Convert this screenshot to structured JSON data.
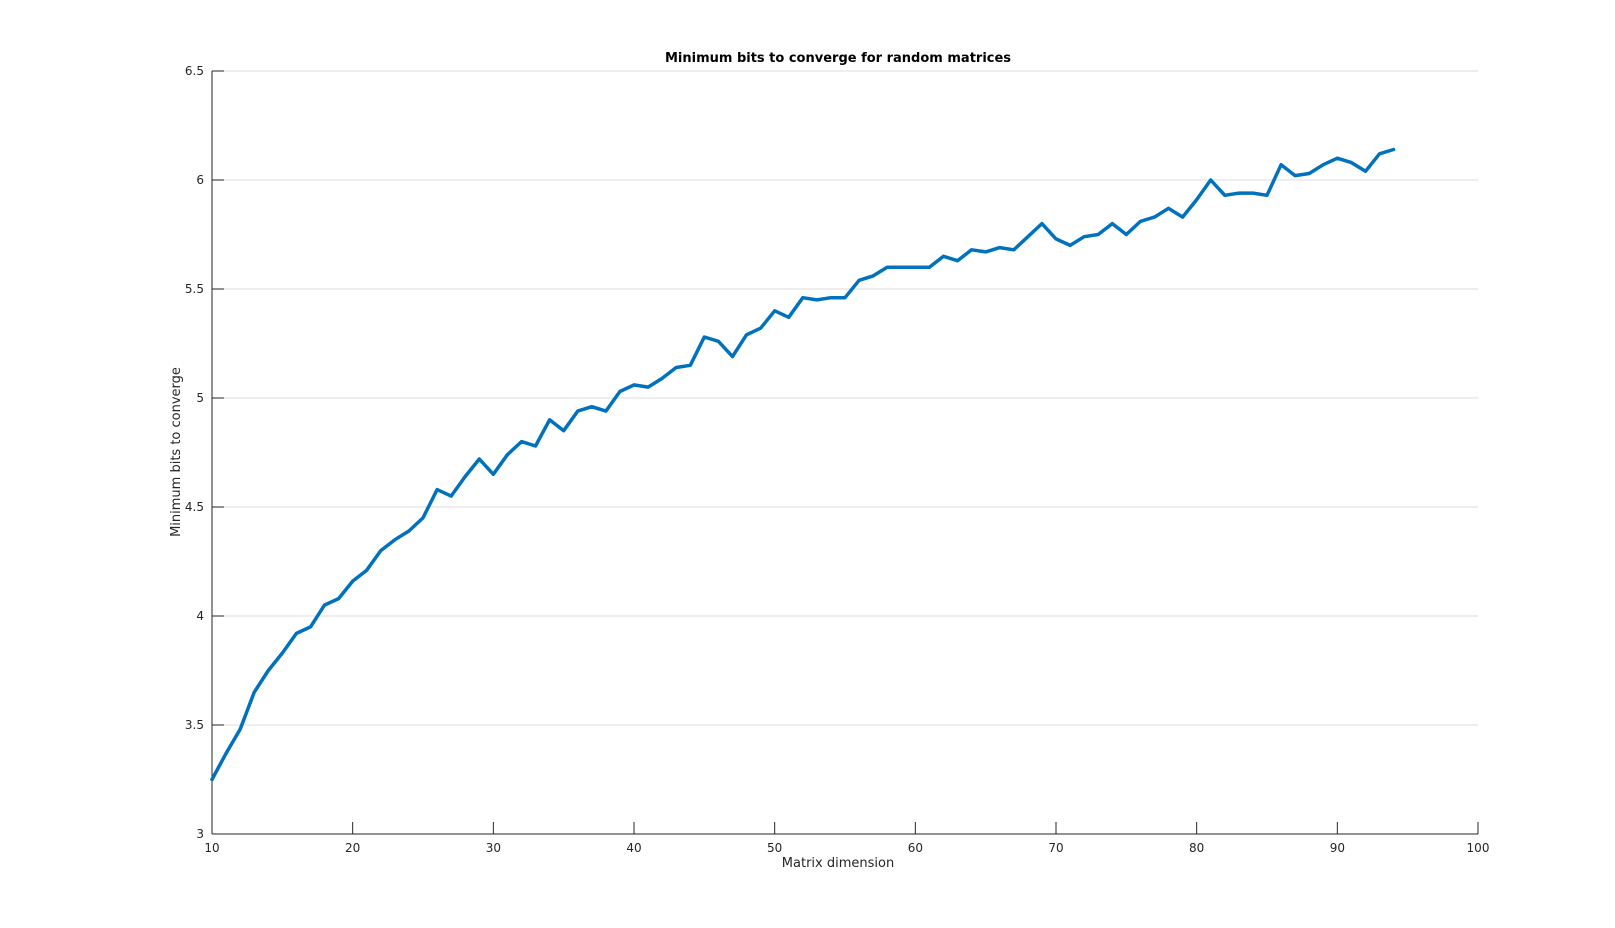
{
  "chart_data": {
    "type": "line",
    "title": "Minimum bits to converge for random matrices",
    "xlabel": "Matrix dimension",
    "ylabel": "Minimum bits to converge",
    "xlim": [
      10,
      100
    ],
    "ylim": [
      3,
      6.5
    ],
    "xticks": [
      "10",
      "20",
      "30",
      "40",
      "50",
      "60",
      "70",
      "80",
      "90",
      "100"
    ],
    "yticks": [
      "3",
      "3.5",
      "4",
      "4.5",
      "5",
      "5.5",
      "6",
      "6.5"
    ],
    "grid": "y",
    "line_color": "#0072BD",
    "series": [
      {
        "x": [
          10,
          11,
          12,
          13,
          14,
          15,
          16,
          17,
          18,
          19,
          20,
          21,
          22,
          23,
          24,
          25,
          26,
          27,
          28,
          29,
          30,
          31,
          32,
          33,
          34,
          35,
          36,
          37,
          38,
          39,
          40,
          41,
          42,
          43,
          44,
          45,
          46,
          47,
          48,
          49,
          50,
          51,
          52,
          53,
          54,
          55,
          56,
          57,
          58,
          59,
          60,
          61,
          62,
          63,
          64,
          65,
          66,
          67,
          68,
          69,
          70,
          71,
          72,
          73,
          74,
          75,
          76,
          77,
          78,
          79,
          80,
          81,
          82,
          83,
          84,
          85,
          86,
          87,
          88,
          89,
          90,
          91,
          92,
          93,
          94
        ],
        "values": [
          3.25,
          3.37,
          3.48,
          3.65,
          3.75,
          3.83,
          3.92,
          3.95,
          4.05,
          4.08,
          4.16,
          4.21,
          4.3,
          4.35,
          4.39,
          4.45,
          4.58,
          4.55,
          4.64,
          4.72,
          4.65,
          4.74,
          4.8,
          4.78,
          4.9,
          4.85,
          4.94,
          4.96,
          4.94,
          5.03,
          5.06,
          5.05,
          5.09,
          5.14,
          5.15,
          5.28,
          5.26,
          5.19,
          5.29,
          5.32,
          5.4,
          5.37,
          5.46,
          5.45,
          5.46,
          5.46,
          5.54,
          5.56,
          5.6,
          5.6,
          5.6,
          5.6,
          5.65,
          5.63,
          5.68,
          5.67,
          5.69,
          5.68,
          5.74,
          5.8,
          5.73,
          5.7,
          5.74,
          5.75,
          5.8,
          5.75,
          5.81,
          5.83,
          5.87,
          5.83,
          5.91,
          6.0,
          5.93,
          5.94,
          5.94,
          5.93,
          6.07,
          6.02,
          6.03,
          6.07,
          6.1,
          6.08,
          6.04,
          6.12,
          6.14
        ]
      }
    ]
  }
}
